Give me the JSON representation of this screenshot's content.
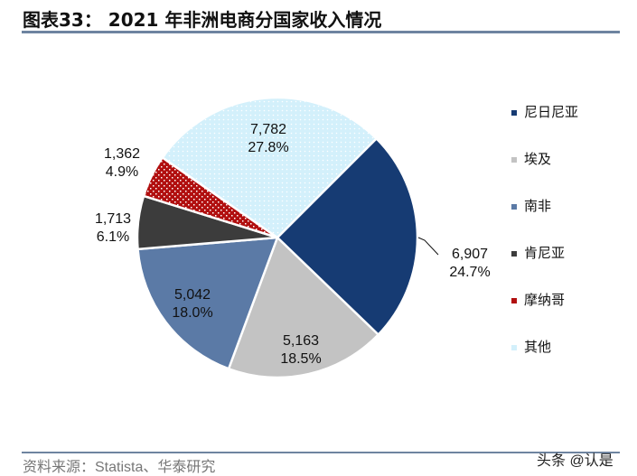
{
  "title": "图表33： 2021 年非洲电商分国家收入情况",
  "source": "资料来源：Statista、华泰研究",
  "watermark": "头条 @认是",
  "chart_data": {
    "type": "pie",
    "title": "图表33： 2021 年非洲电商分国家收入情况",
    "legend_position": "right",
    "slices": [
      {
        "name": "尼日尼亚",
        "value": 6907,
        "label": "6,907",
        "pct": "24.7%",
        "color": "#163b73"
      },
      {
        "name": "埃及",
        "value": 5163,
        "label": "5,163",
        "pct": "18.5%",
        "color": "#c3c3c3"
      },
      {
        "name": "南非",
        "value": 5042,
        "label": "5,042",
        "pct": "18.0%",
        "color": "#5b7aa6"
      },
      {
        "name": "肯尼亚",
        "value": 1713,
        "label": "1,713",
        "pct": "6.1%",
        "color": "#3c3c3c"
      },
      {
        "name": "摩纳哥",
        "value": 1362,
        "label": "1,362",
        "pct": "4.9%",
        "color": "#b10f0f"
      },
      {
        "name": "其他",
        "value": 7782,
        "label": "7,782",
        "pct": "27.8%",
        "color": "#d3f0fb"
      }
    ]
  }
}
